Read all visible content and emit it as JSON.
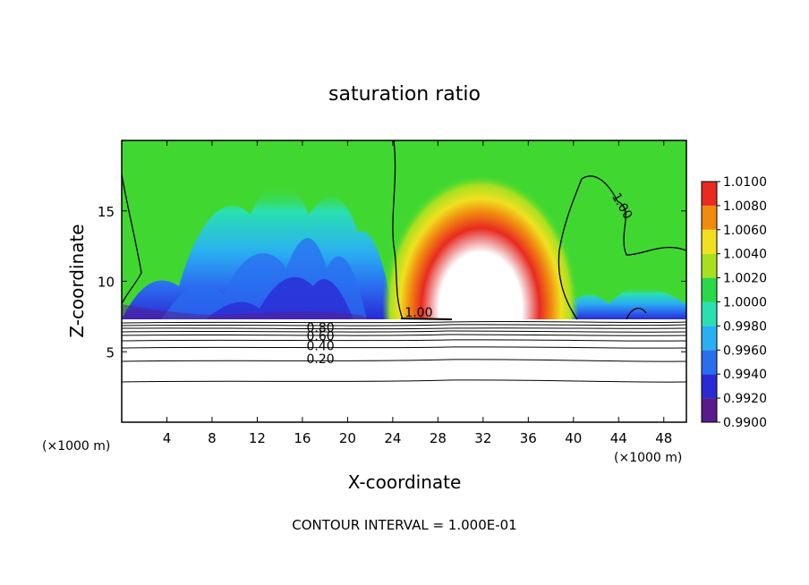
{
  "chart_data": {
    "type": "heatmap",
    "title": "saturation ratio",
    "xlabel": "X-coordinate",
    "ylabel": "Z-coordinate",
    "x_unit_left": "(×1000 m)",
    "x_unit_right": "(×1000 m)",
    "footer": "CONTOUR INTERVAL = 1.000E-01",
    "xlim": [
      0,
      50
    ],
    "ylim": [
      0,
      20
    ],
    "x_ticks": [
      4,
      8,
      12,
      16,
      20,
      24,
      28,
      32,
      36,
      40,
      44,
      48
    ],
    "y_ticks": [
      5,
      10,
      15
    ],
    "colorbar": {
      "levels": [
        "0.9900",
        "0.9920",
        "0.9940",
        "0.9960",
        "0.9980",
        "1.0000",
        "1.0020",
        "1.0040",
        "1.0060",
        "1.0080",
        "1.0100"
      ],
      "colors": [
        "#5a1a8c",
        "#2a2ad4",
        "#2a6ef0",
        "#2ab0f0",
        "#2ae0b0",
        "#2ad84a",
        "#a8e020",
        "#f0e020",
        "#f08a10",
        "#e82a20",
        "#f0a0a0"
      ]
    },
    "contour_labels": [
      "1.00",
      "1.00",
      "0.80",
      "0.60",
      "0.40",
      "0.20"
    ],
    "contour_levels_below": [
      0.2,
      0.3,
      0.4,
      0.5,
      0.6,
      0.7,
      0.8,
      0.9
    ],
    "cloud_base_z": 7.3,
    "peak_region": {
      "x_center": 32,
      "z_center": 12,
      "max_ratio": 1.01
    },
    "grid": false
  }
}
